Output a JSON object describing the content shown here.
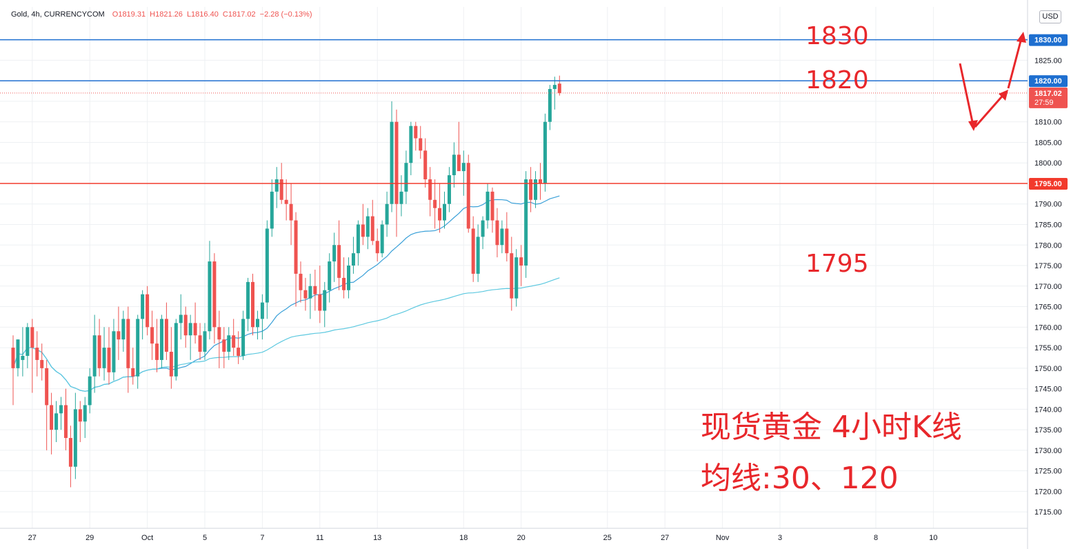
{
  "legend": {
    "symbol": "Gold, 4h, CURRENCYCOM",
    "open": "O1819.31",
    "high": "H1821.26",
    "low": "L1816.40",
    "close": "C1817.02",
    "change": "−2.28 (−0.13%)"
  },
  "currency": "USD",
  "annotations": {
    "level_1830": "1830",
    "level_1820": "1820",
    "level_1795": "1795",
    "note_title": "现货黄金 4小时K线",
    "note_ma": "均线:30、120"
  },
  "colors": {
    "up": "#26a69a",
    "down": "#ef5350",
    "ma_fast": "#3aa0d8",
    "ma_slow": "#5bc8df",
    "hline_blue": "#1e6fd0",
    "hline_red": "#f23a2c",
    "annotation": "#e8272b"
  },
  "chart_data": {
    "type": "candlestick",
    "interval": "4h",
    "ylim": [
      1711,
      1838
    ],
    "y_ticks": [
      1715,
      1720,
      1725,
      1730,
      1735,
      1740,
      1745,
      1750,
      1755,
      1760,
      1765,
      1770,
      1775,
      1780,
      1785,
      1790,
      1795,
      1800,
      1805,
      1810,
      1815,
      1820,
      1825
    ],
    "y_tick_labels": [
      "1715.00",
      "1720.00",
      "1725.00",
      "1730.00",
      "1735.00",
      "1740.00",
      "1745.00",
      "1750.00",
      "1755.00",
      "1760.00",
      "1765.00",
      "1770.00",
      "1775.00",
      "1780.00",
      "1785.00",
      "1790.00",
      "1795.00",
      "1800.00",
      "1805.00",
      "1810.00",
      "1815.00",
      "1820.00",
      "1825.00"
    ],
    "x_tick_labels": [
      "27",
      "29",
      "Oct",
      "5",
      "7",
      "11",
      "13",
      "18",
      "20",
      "25",
      "27",
      "Nov",
      "3",
      "8",
      "10"
    ],
    "x_tick_bars": [
      4,
      16,
      28,
      40,
      52,
      64,
      76,
      94,
      106,
      124,
      136,
      148,
      160,
      180,
      192
    ],
    "horizontal_lines": [
      {
        "price": 1830,
        "label": "1830.00",
        "color": "#1e6fd0"
      },
      {
        "price": 1820,
        "label": "1820.00",
        "color": "#1e6fd0"
      },
      {
        "price": 1795,
        "label": "1795.00",
        "color": "#f23a2c"
      }
    ],
    "last_price": {
      "price": 1817.02,
      "label": "1817.02",
      "countdown": "27:59"
    },
    "ohlc": [
      [
        1755,
        1758,
        1741,
        1750
      ],
      [
        1750,
        1757,
        1748,
        1757
      ],
      [
        1752,
        1760,
        1748,
        1753
      ],
      [
        1753,
        1761,
        1750,
        1760
      ],
      [
        1760,
        1762,
        1744,
        1755
      ],
      [
        1755,
        1759,
        1748,
        1752
      ],
      [
        1752,
        1756,
        1747,
        1750
      ],
      [
        1750,
        1752,
        1730,
        1741
      ],
      [
        1741,
        1744,
        1729,
        1735
      ],
      [
        1735,
        1742,
        1732,
        1739
      ],
      [
        1739,
        1743,
        1735,
        1741
      ],
      [
        1741,
        1745,
        1730,
        1733
      ],
      [
        1733,
        1736,
        1721,
        1726
      ],
      [
        1726,
        1744,
        1723,
        1740
      ],
      [
        1740,
        1742,
        1732,
        1737
      ],
      [
        1737,
        1743,
        1733,
        1741
      ],
      [
        1741,
        1750,
        1739,
        1748
      ],
      [
        1748,
        1763,
        1744,
        1758
      ],
      [
        1758,
        1762,
        1748,
        1750
      ],
      [
        1750,
        1760,
        1747,
        1755
      ],
      [
        1755,
        1760,
        1746,
        1749
      ],
      [
        1749,
        1762,
        1747,
        1759
      ],
      [
        1759,
        1765,
        1752,
        1757
      ],
      [
        1757,
        1764,
        1754,
        1762
      ],
      [
        1762,
        1765,
        1744,
        1750
      ],
      [
        1750,
        1755,
        1746,
        1748
      ],
      [
        1748,
        1763,
        1745,
        1762
      ],
      [
        1762,
        1769,
        1757,
        1768
      ],
      [
        1768,
        1770,
        1758,
        1760
      ],
      [
        1760,
        1764,
        1752,
        1756
      ],
      [
        1756,
        1762,
        1749,
        1752
      ],
      [
        1752,
        1763,
        1750,
        1762
      ],
      [
        1762,
        1766,
        1752,
        1754
      ],
      [
        1754,
        1760,
        1745,
        1748
      ],
      [
        1748,
        1762,
        1747,
        1761
      ],
      [
        1761,
        1768,
        1757,
        1763
      ],
      [
        1763,
        1765,
        1755,
        1758
      ],
      [
        1758,
        1763,
        1752,
        1761
      ],
      [
        1761,
        1766,
        1756,
        1758
      ],
      [
        1758,
        1761,
        1752,
        1754
      ],
      [
        1754,
        1761,
        1752,
        1759
      ],
      [
        1759,
        1781,
        1757,
        1776
      ],
      [
        1776,
        1778,
        1756,
        1760
      ],
      [
        1760,
        1764,
        1750,
        1757
      ],
      [
        1757,
        1760,
        1750,
        1754
      ],
      [
        1754,
        1760,
        1752,
        1758
      ],
      [
        1758,
        1762,
        1753,
        1755
      ],
      [
        1755,
        1759,
        1751,
        1753
      ],
      [
        1753,
        1764,
        1752,
        1762
      ],
      [
        1762,
        1772,
        1759,
        1771
      ],
      [
        1771,
        1773,
        1758,
        1760
      ],
      [
        1760,
        1764,
        1757,
        1762
      ],
      [
        1762,
        1768,
        1757,
        1766
      ],
      [
        1766,
        1786,
        1762,
        1784
      ],
      [
        1784,
        1796,
        1782,
        1793
      ],
      [
        1793,
        1799,
        1789,
        1796
      ],
      [
        1796,
        1800,
        1790,
        1791
      ],
      [
        1791,
        1796,
        1786,
        1790
      ],
      [
        1790,
        1795,
        1780,
        1786
      ],
      [
        1786,
        1788,
        1765,
        1773
      ],
      [
        1773,
        1776,
        1766,
        1769
      ],
      [
        1769,
        1772,
        1764,
        1767
      ],
      [
        1767,
        1773,
        1762,
        1770
      ],
      [
        1770,
        1774,
        1764,
        1768
      ],
      [
        1768,
        1775,
        1761,
        1764
      ],
      [
        1764,
        1771,
        1760,
        1769
      ],
      [
        1769,
        1778,
        1766,
        1776
      ],
      [
        1776,
        1783,
        1771,
        1780
      ],
      [
        1780,
        1786,
        1769,
        1772
      ],
      [
        1772,
        1777,
        1767,
        1769
      ],
      [
        1769,
        1777,
        1767,
        1775
      ],
      [
        1775,
        1782,
        1773,
        1778
      ],
      [
        1778,
        1786,
        1775,
        1785
      ],
      [
        1785,
        1790,
        1780,
        1782
      ],
      [
        1782,
        1789,
        1779,
        1787
      ],
      [
        1787,
        1791,
        1780,
        1781
      ],
      [
        1781,
        1784,
        1776,
        1778
      ],
      [
        1778,
        1786,
        1777,
        1785
      ],
      [
        1785,
        1793,
        1782,
        1790
      ],
      [
        1790,
        1815,
        1788,
        1810
      ],
      [
        1810,
        1813,
        1782,
        1790
      ],
      [
        1790,
        1797,
        1787,
        1793
      ],
      [
        1793,
        1803,
        1790,
        1800
      ],
      [
        1800,
        1810,
        1797,
        1809
      ],
      [
        1809,
        1810,
        1803,
        1806
      ],
      [
        1806,
        1809,
        1801,
        1803
      ],
      [
        1803,
        1806,
        1794,
        1796
      ],
      [
        1796,
        1799,
        1787,
        1791
      ],
      [
        1791,
        1796,
        1784,
        1789
      ],
      [
        1789,
        1795,
        1783,
        1786
      ],
      [
        1786,
        1793,
        1784,
        1790
      ],
      [
        1790,
        1799,
        1788,
        1797
      ],
      [
        1797,
        1805,
        1794,
        1802
      ],
      [
        1802,
        1810,
        1799,
        1798
      ],
      [
        1798,
        1803,
        1792,
        1800
      ],
      [
        1800,
        1802,
        1783,
        1784
      ],
      [
        1784,
        1787,
        1771,
        1773
      ],
      [
        1773,
        1785,
        1771,
        1782
      ],
      [
        1782,
        1787,
        1779,
        1786
      ],
      [
        1786,
        1795,
        1784,
        1793
      ],
      [
        1793,
        1794,
        1783,
        1786
      ],
      [
        1786,
        1789,
        1777,
        1780
      ],
      [
        1780,
        1786,
        1778,
        1784
      ],
      [
        1784,
        1788,
        1776,
        1778
      ],
      [
        1778,
        1782,
        1764,
        1767
      ],
      [
        1767,
        1779,
        1765,
        1777
      ],
      [
        1777,
        1780,
        1770,
        1775
      ],
      [
        1775,
        1798,
        1772,
        1796
      ],
      [
        1796,
        1799,
        1788,
        1791
      ],
      [
        1791,
        1798,
        1789,
        1796
      ],
      [
        1796,
        1800,
        1791,
        1795
      ],
      [
        1795,
        1812,
        1793,
        1810
      ],
      [
        1810,
        1819,
        1808,
        1818
      ],
      [
        1818,
        1821,
        1813,
        1819
      ],
      [
        1819.31,
        1821.26,
        1816.4,
        1817.02
      ]
    ],
    "ma": [
      {
        "name": "MA30",
        "period": 30,
        "color": "#3aa0d8"
      },
      {
        "name": "MA120",
        "period": 120,
        "color": "#5bc8df"
      }
    ]
  }
}
